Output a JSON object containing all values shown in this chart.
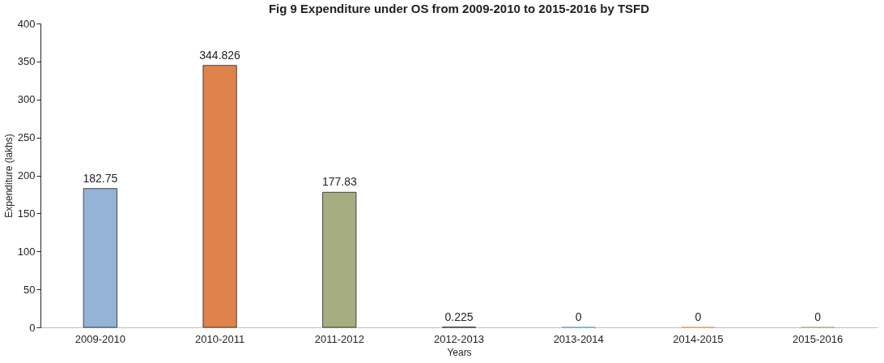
{
  "chart_data": {
    "type": "bar",
    "title": "Fig 9 Expenditure under OS from 2009-2010 to 2015-2016 by TSFD",
    "xlabel": "Years",
    "ylabel": "Expenditure  (lakhs)",
    "categories": [
      "2009-2010",
      "2010-2011",
      "2011-2012",
      "2012-2013",
      "2013-2014",
      "2014-2015",
      "2015-2016"
    ],
    "values": [
      182.75,
      344.826,
      177.83,
      0.225,
      0,
      0,
      0
    ],
    "colors": [
      "#95b3d7",
      "#e0834a",
      "#a6ad80",
      "#8c7aa6",
      "#4bacc6",
      "#f79646",
      "#9bbb59"
    ],
    "ylim": [
      0,
      400
    ],
    "yticks": [
      0,
      50,
      100,
      150,
      200,
      250,
      300,
      350,
      400
    ],
    "grid": false,
    "data_labels": true
  }
}
